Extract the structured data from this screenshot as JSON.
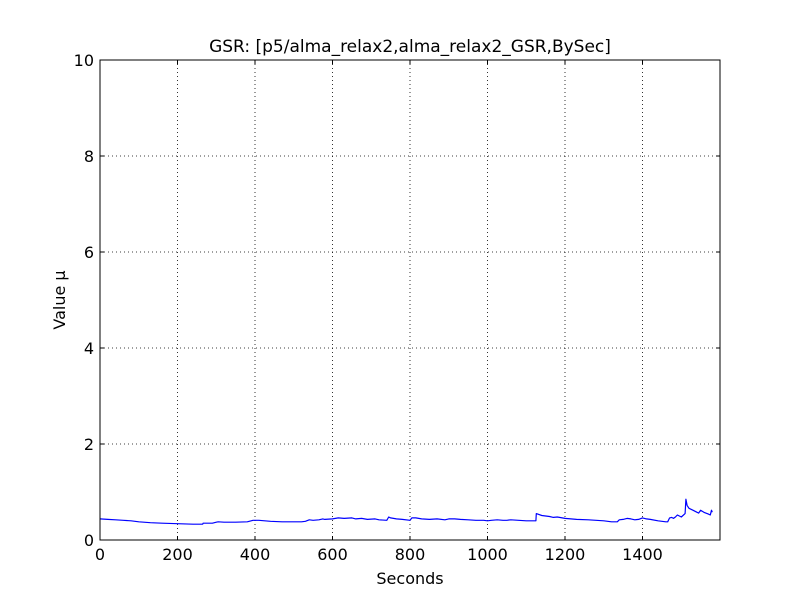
{
  "chart_data": {
    "type": "line",
    "title": "GSR: [p5/alma_relax2,alma_relax2_GSR,BySec]",
    "xlabel": "Seconds",
    "ylabel": "Value µ",
    "xlim": [
      0,
      1600
    ],
    "ylim": [
      0,
      10
    ],
    "xticks": [
      0,
      200,
      400,
      600,
      800,
      1000,
      1200,
      1400
    ],
    "yticks": [
      0,
      2,
      4,
      6,
      8,
      10
    ],
    "grid": true,
    "series": [
      {
        "color": "#0000ff",
        "x": [
          0,
          20,
          40,
          60,
          80,
          100,
          130,
          160,
          200,
          240,
          265,
          266,
          290,
          300,
          305,
          320,
          350,
          380,
          395,
          410,
          440,
          470,
          500,
          520,
          530,
          540,
          550,
          565,
          575,
          580,
          600,
          615,
          630,
          650,
          660,
          675,
          690,
          710,
          720,
          740,
          745,
          750,
          765,
          780,
          800,
          805,
          815,
          830,
          850,
          870,
          890,
          900,
          915,
          930,
          950,
          970,
          990,
          1000,
          1010,
          1025,
          1040,
          1050,
          1060,
          1080,
          1100,
          1120,
          1125,
          1126,
          1140,
          1160,
          1170,
          1180,
          1200,
          1230,
          1260,
          1280,
          1300,
          1320,
          1335,
          1340,
          1350,
          1360,
          1370,
          1380,
          1390,
          1400,
          1410,
          1420,
          1440,
          1460,
          1465,
          1470,
          1475,
          1480,
          1485,
          1490,
          1500,
          1510,
          1512,
          1515,
          1520,
          1530,
          1540,
          1545,
          1550,
          1560,
          1570,
          1575,
          1578,
          1580
        ],
        "y": [
          0.44,
          0.43,
          0.42,
          0.41,
          0.4,
          0.38,
          0.36,
          0.35,
          0.34,
          0.33,
          0.33,
          0.35,
          0.35,
          0.37,
          0.38,
          0.37,
          0.37,
          0.38,
          0.41,
          0.41,
          0.39,
          0.38,
          0.38,
          0.38,
          0.39,
          0.42,
          0.41,
          0.42,
          0.44,
          0.43,
          0.44,
          0.46,
          0.45,
          0.46,
          0.44,
          0.45,
          0.43,
          0.44,
          0.42,
          0.41,
          0.48,
          0.46,
          0.44,
          0.43,
          0.41,
          0.46,
          0.46,
          0.44,
          0.43,
          0.44,
          0.42,
          0.44,
          0.44,
          0.43,
          0.42,
          0.41,
          0.41,
          0.4,
          0.41,
          0.42,
          0.41,
          0.41,
          0.42,
          0.41,
          0.4,
          0.4,
          0.4,
          0.55,
          0.51,
          0.49,
          0.47,
          0.48,
          0.45,
          0.43,
          0.42,
          0.41,
          0.4,
          0.38,
          0.38,
          0.42,
          0.43,
          0.45,
          0.44,
          0.42,
          0.43,
          0.46,
          0.44,
          0.43,
          0.4,
          0.38,
          0.38,
          0.46,
          0.47,
          0.45,
          0.48,
          0.52,
          0.48,
          0.55,
          0.85,
          0.72,
          0.66,
          0.62,
          0.58,
          0.56,
          0.62,
          0.57,
          0.54,
          0.52,
          0.62,
          0.58
        ]
      }
    ]
  }
}
